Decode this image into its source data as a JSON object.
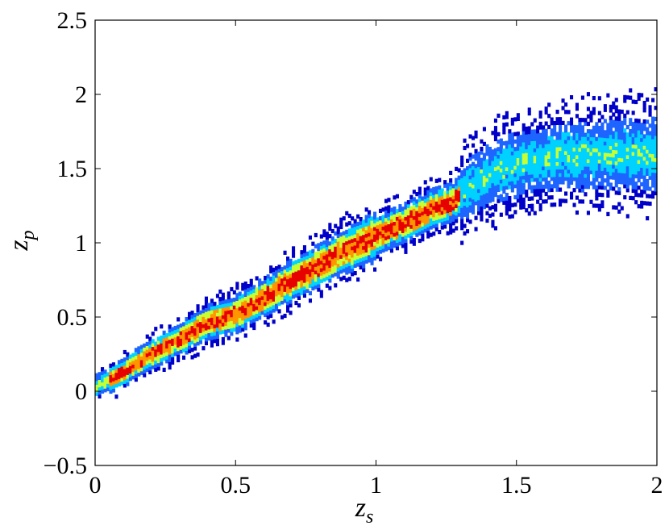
{
  "chart_data": {
    "type": "heatmap",
    "title": "",
    "xlabel": "z",
    "xlabel_subscript": "s",
    "ylabel": "z",
    "ylabel_subscript": "p",
    "xlim": [
      0,
      2
    ],
    "ylim": [
      -0.5,
      2.5
    ],
    "xticks": [
      "0",
      "0.5",
      "1",
      "1.5",
      "2"
    ],
    "yticks": [
      "−0.5",
      "0",
      "0.5",
      "1",
      "1.5",
      "2",
      "2.5"
    ],
    "grid": false,
    "colormap": "jet",
    "colors": {
      "low": "#0000c8",
      "mid_low": "#1e64ff",
      "mid": "#00d2ff",
      "mid_high": "#c8ff32",
      "high": "#ff9600",
      "max": "#e60000"
    },
    "ridge": [
      [
        0.0,
        0.03
      ],
      [
        0.1,
        0.13
      ],
      [
        0.2,
        0.25
      ],
      [
        0.3,
        0.35
      ],
      [
        0.4,
        0.46
      ],
      [
        0.5,
        0.52
      ],
      [
        0.6,
        0.63
      ],
      [
        0.7,
        0.75
      ],
      [
        0.8,
        0.85
      ],
      [
        0.9,
        0.96
      ],
      [
        1.0,
        1.05
      ],
      [
        1.1,
        1.13
      ],
      [
        1.2,
        1.23
      ],
      [
        1.27,
        1.27
      ],
      [
        1.35,
        1.4
      ],
      [
        1.45,
        1.5
      ],
      [
        1.55,
        1.55
      ],
      [
        1.65,
        1.58
      ],
      [
        1.8,
        1.6
      ],
      [
        2.0,
        1.6
      ]
    ],
    "note_on_values": "2D density of (z_s, z_p) pairs; color indicates relative count from low (dark blue) to high (red)"
  }
}
